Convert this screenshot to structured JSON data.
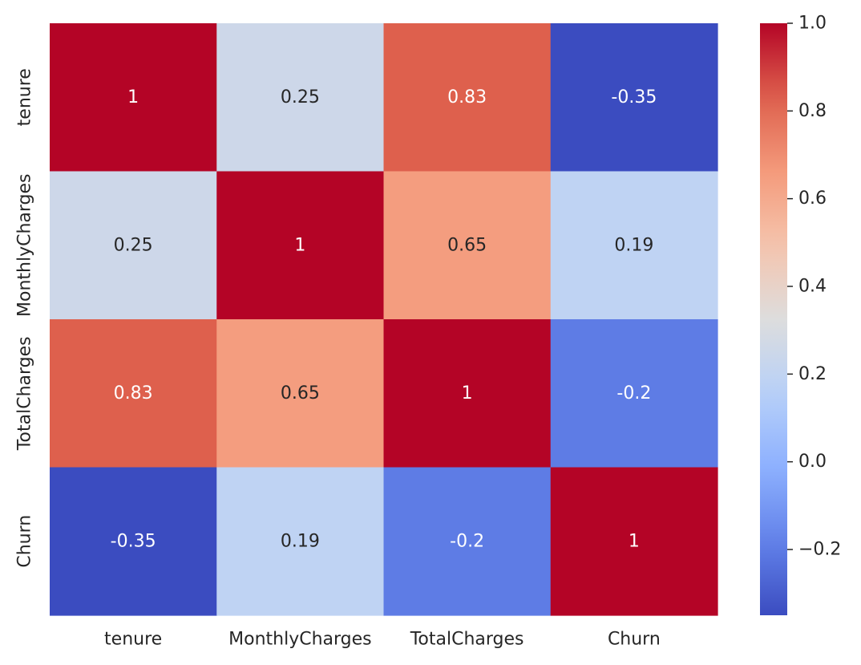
{
  "chart_data": {
    "type": "heatmap",
    "title": "",
    "xlabel": "",
    "ylabel": "",
    "x_categories": [
      "tenure",
      "MonthlyCharges",
      "TotalCharges",
      "Churn"
    ],
    "y_categories": [
      "tenure",
      "MonthlyCharges",
      "TotalCharges",
      "Churn"
    ],
    "values": [
      [
        1,
        0.25,
        0.83,
        -0.35
      ],
      [
        0.25,
        1,
        0.65,
        0.19
      ],
      [
        0.83,
        0.65,
        1,
        -0.2
      ],
      [
        -0.35,
        0.19,
        -0.2,
        1
      ]
    ],
    "cell_labels": [
      [
        "1",
        "0.25",
        "0.83",
        "-0.35"
      ],
      [
        "0.25",
        "1",
        "0.65",
        "0.19"
      ],
      [
        "0.83",
        "0.65",
        "1",
        "-0.2"
      ],
      [
        "-0.35",
        "0.19",
        "-0.2",
        "1"
      ]
    ],
    "colormap": "coolwarm",
    "colorbar": {
      "vmin": -0.35,
      "vmax": 1.0,
      "ticks": [
        -0.2,
        0.0,
        0.2,
        0.4,
        0.6,
        0.8,
        1.0
      ],
      "tick_labels": [
        "−0.2",
        "0.0",
        "0.2",
        "0.4",
        "0.6",
        "0.8",
        "1.0"
      ]
    },
    "annotation_colors": {
      "dark": "#262626",
      "light": "#ffffff"
    }
  }
}
